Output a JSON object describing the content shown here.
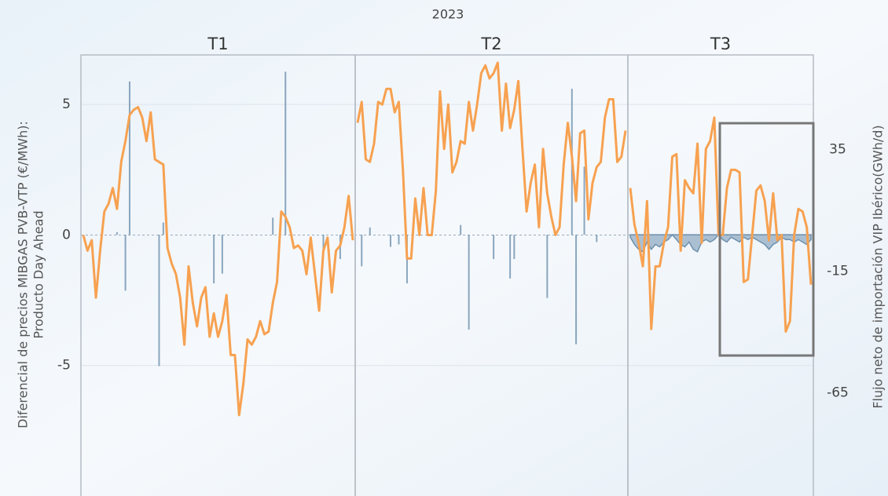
{
  "chart_data": {
    "type": "line",
    "title": "2023",
    "ylabel": [
      "Diferencial de precios MIBGAS PVB-VTP (€/MWh):",
      "Producto Day Ahead"
    ],
    "y2label": "Flujo neto de importación VIP Ibérico(GWh/d)",
    "ylim": [
      -10,
      6.9
    ],
    "yticks": [
      5,
      0,
      -5
    ],
    "y2lim": [
      -107.4,
      73.9
    ],
    "y2ticks": [
      35,
      -15,
      -65
    ],
    "grid": true,
    "panels": [
      {
        "label": "T1",
        "series": [
          {
            "color": "#f7a150",
            "values": [
              0,
              -0.6,
              -0.2,
              -2.4,
              -0.6,
              0.9,
              1.2,
              1.8,
              1.0,
              2.8,
              3.6,
              4.6,
              4.8,
              4.9,
              4.5,
              3.6,
              4.7,
              2.9,
              2.8,
              2.7,
              -0.5,
              -1.1,
              -1.5,
              -2.4,
              -4.2,
              -1.2,
              -2.6,
              -3.5,
              -2.4,
              -2.0,
              -3.9,
              -3.0,
              -3.9,
              -3.3,
              -2.3,
              -4.6,
              -4.6,
              -6.9,
              -5.7,
              -4.0,
              -4.2,
              -3.9,
              -3.3,
              -3.8,
              -3.7,
              -2.6,
              -1.8,
              0.9,
              0.7,
              0.3,
              -0.5,
              -0.4,
              -0.6,
              -1.5,
              -0.1,
              -1.5,
              -2.9,
              -0.6,
              -0.1,
              -2.2,
              -0.6,
              -0.4,
              0.3,
              1.5,
              -0.2
            ]
          },
          {
            "color": "#6f91ae",
            "axis": "y2",
            "type": "bar",
            "values": [
              0,
              0,
              0,
              0,
              0,
              0,
              0,
              0,
              1,
              0,
              -23,
              63,
              0,
              0,
              0,
              0,
              0,
              0,
              -54,
              5,
              0,
              0,
              0,
              0,
              0,
              0,
              0,
              0,
              0,
              0,
              0,
              -20,
              0,
              -16,
              0,
              0,
              0,
              0,
              0,
              0,
              0,
              0,
              0,
              0,
              0,
              7,
              0,
              0,
              67,
              0,
              0,
              0,
              0,
              0,
              0,
              0,
              0,
              -8,
              0,
              0,
              0,
              -10,
              0,
              0,
              0
            ]
          }
        ]
      },
      {
        "label": "T2",
        "series": [
          {
            "color": "#f7a150",
            "values": [
              4.3,
              5.1,
              2.9,
              2.8,
              3.5,
              5.1,
              5.0,
              5.6,
              5.6,
              4.7,
              5.1,
              2.5,
              -0.9,
              -0.9,
              1.4,
              0,
              1.8,
              0,
              0,
              1.7,
              5.5,
              3.3,
              5.0,
              2.4,
              2.8,
              3.6,
              3.5,
              5.1,
              4.0,
              5.0,
              6.2,
              6.5,
              6.0,
              6.2,
              6.6,
              4.0,
              5.8,
              4.1,
              4.8,
              5.9,
              3.3,
              0.9,
              2.0,
              2.7,
              0.3,
              3.3,
              1.6,
              0.7,
              0,
              0.3,
              2.7,
              4.3,
              3.0,
              1.3,
              3.9,
              4.0,
              0.6,
              2.0,
              2.6,
              2.8,
              4.5,
              5.2,
              5.2,
              2.8,
              3.0,
              4.0
            ]
          },
          {
            "color": "#6f91ae",
            "axis": "y2",
            "type": "bar",
            "values": [
              0,
              -13,
              0,
              3,
              0,
              0,
              0,
              0,
              -5,
              0,
              -4,
              0,
              -20,
              0,
              0,
              0,
              0,
              0,
              0,
              0,
              0,
              0,
              0,
              0,
              0,
              4,
              0,
              -39,
              0,
              0,
              0,
              0,
              0,
              -10,
              0,
              0,
              0,
              -18,
              -10,
              0,
              0,
              0,
              0,
              0,
              0,
              0,
              -26,
              0,
              0,
              0,
              0,
              0,
              60,
              -45,
              0,
              28,
              0,
              0,
              -3,
              0,
              0,
              0,
              0,
              0,
              0,
              0
            ]
          }
        ]
      },
      {
        "label": "T3",
        "series": [
          {
            "color": "#f7a150",
            "values": [
              1.8,
              0.4,
              -0.3,
              -1.2,
              1.3,
              -3.6,
              -1.2,
              -1.2,
              -0.3,
              0.3,
              3.0,
              3.1,
              -0.6,
              2.1,
              1.8,
              1.6,
              3.5,
              -0.3,
              3.3,
              3.6,
              4.5,
              0,
              0,
              1.8,
              2.5,
              2.5,
              2.4,
              -1.8,
              -1.7,
              0,
              1.7,
              1.9,
              1.3,
              -0.2,
              1.6,
              -0.2,
              0,
              -3.7,
              -3.3,
              0,
              1.0,
              0.9,
              0.3,
              -1.9
            ]
          },
          {
            "color": "#6f91ae",
            "axis": "y2",
            "type": "area",
            "values": [
              -1,
              -4,
              -6,
              -7,
              -3,
              -6,
              -4,
              -5,
              -3,
              -2,
              0,
              -2,
              -4,
              -5,
              -3,
              -6,
              -7,
              -3,
              -2,
              -3,
              -2,
              0,
              -2,
              -3,
              -1,
              -2,
              -3,
              -1,
              -2,
              -1,
              -2,
              -3,
              -4,
              -6,
              -4,
              -3,
              -1,
              -2,
              -2,
              -3,
              -2,
              -3,
              -4,
              -2
            ]
          }
        ]
      }
    ]
  }
}
